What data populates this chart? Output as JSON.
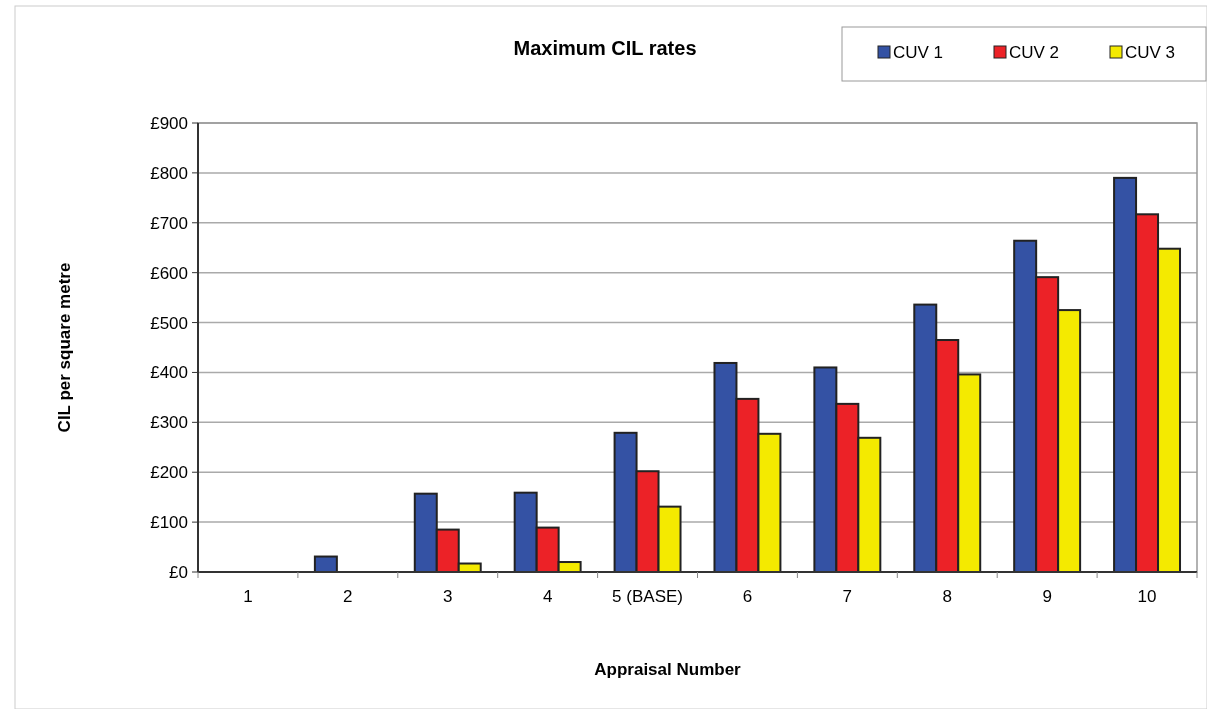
{
  "chart_data": {
    "type": "bar",
    "title": "Maximum CIL rates",
    "xlabel": "Appraisal Number",
    "ylabel": "CIL per square metre",
    "categories": [
      "1",
      "2",
      "3",
      "4",
      "5 (BASE)",
      "6",
      "7",
      "8",
      "9",
      "10"
    ],
    "series": [
      {
        "name": "CUV 1",
        "color": "#3452a4",
        "values": [
          0,
          31,
          157,
          159,
          279,
          419,
          410,
          536,
          664,
          790
        ]
      },
      {
        "name": "CUV 2",
        "color": "#ec2227",
        "values": [
          0,
          0,
          85,
          89,
          202,
          347,
          337,
          465,
          591,
          717
        ]
      },
      {
        "name": "CUV 3",
        "color": "#f4ea00",
        "values": [
          0,
          0,
          17,
          20,
          131,
          277,
          269,
          396,
          525,
          648
        ]
      }
    ],
    "ylim": [
      0,
      900
    ],
    "yticks": [
      {
        "value": 0,
        "label": "£0"
      },
      {
        "value": 100,
        "label": "£100"
      },
      {
        "value": 200,
        "label": "£200"
      },
      {
        "value": 300,
        "label": "£300"
      },
      {
        "value": 400,
        "label": "£400"
      },
      {
        "value": 500,
        "label": "£500"
      },
      {
        "value": 600,
        "label": "£600"
      },
      {
        "value": 700,
        "label": "£700"
      },
      {
        "value": 800,
        "label": "£800"
      },
      {
        "value": 900,
        "label": "£900"
      }
    ],
    "grid": "y",
    "legend": "top right"
  }
}
